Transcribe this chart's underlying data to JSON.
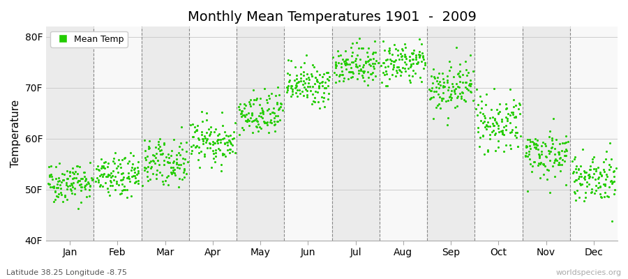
{
  "title": "Monthly Mean Temperatures 1901  -  2009",
  "ylabel": "Temperature",
  "lat_lon_label": "Latitude 38.25 Longitude -8.75",
  "watermark": "worldspecies.org",
  "dot_color": "#22cc00",
  "bg_color_odd": "#ebebeb",
  "bg_color_even": "#f8f8f8",
  "legend_label": "Mean Temp",
  "yticks": [
    40,
    50,
    60,
    70,
    80
  ],
  "ytick_labels": [
    "40F",
    "50F",
    "60F",
    "70F",
    "80F"
  ],
  "ylim": [
    40,
    82
  ],
  "month_labels": [
    "Jan",
    "Feb",
    "Mar",
    "Apr",
    "May",
    "Jun",
    "Jul",
    "Aug",
    "Sep",
    "Oct",
    "Nov",
    "Dec"
  ],
  "monthly_mean_F": [
    51.5,
    52.5,
    55.5,
    59.5,
    64.5,
    70.5,
    74.5,
    75.0,
    70.0,
    63.0,
    57.0,
    52.5
  ],
  "monthly_std_F": [
    2.0,
    2.0,
    2.2,
    2.2,
    2.2,
    2.0,
    2.0,
    2.0,
    2.5,
    2.5,
    2.5,
    2.5
  ],
  "n_years": 109,
  "year_start": 1901,
  "year_end": 2009
}
